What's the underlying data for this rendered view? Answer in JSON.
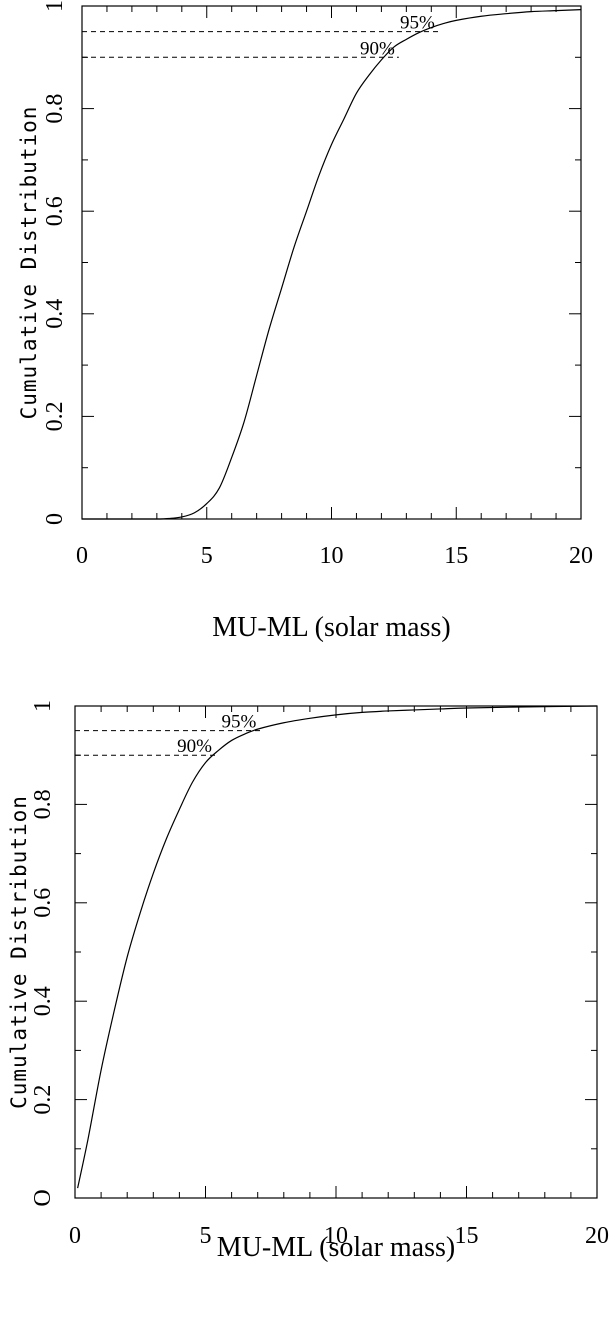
{
  "chart_data": [
    {
      "type": "line",
      "title": "",
      "xlabel": "MU-ML (solar mass)",
      "ylabel": "Cumulative    Distribution",
      "xlim": [
        0,
        20
      ],
      "ylim": [
        0,
        1
      ],
      "xticks": [
        0,
        5,
        10,
        15,
        20
      ],
      "yticks": [
        0,
        0.2,
        0.4,
        0.6,
        0.8,
        1
      ],
      "ytick_labels": [
        "0",
        "0.2",
        "0.4",
        "0.6",
        "0.8",
        "1"
      ],
      "series": [
        {
          "x": [
            0,
            2,
            3,
            3.5,
            4,
            4.5,
            5,
            5.5,
            6,
            6.5,
            7,
            7.5,
            8,
            8.5,
            9,
            9.5,
            10,
            10.5,
            11,
            11.5,
            12,
            12.5,
            13,
            13.5,
            14,
            14.5,
            15,
            16,
            17,
            18,
            19,
            20
          ],
          "values": [
            0,
            0,
            0,
            0.001,
            0.004,
            0.012,
            0.03,
            0.06,
            0.12,
            0.19,
            0.28,
            0.37,
            0.45,
            0.53,
            0.6,
            0.67,
            0.73,
            0.78,
            0.83,
            0.865,
            0.895,
            0.92,
            0.935,
            0.948,
            0.958,
            0.966,
            0.972,
            0.98,
            0.985,
            0.989,
            0.991,
            0.993
          ]
        }
      ],
      "reference_lines": [
        {
          "label": "90%",
          "y": 0.9,
          "x_end": 12.7
        },
        {
          "label": "95%",
          "y": 0.95,
          "x_end": 14.3
        }
      ]
    },
    {
      "type": "line",
      "title": "",
      "xlabel": "MU-ML (solar mass)",
      "ylabel": "Cumulative    Distribution",
      "xlim": [
        0,
        20
      ],
      "ylim": [
        0,
        1
      ],
      "xticks": [
        0,
        5,
        10,
        15,
        20
      ],
      "yticks": [
        0,
        0.2,
        0.4,
        0.6,
        0.8,
        1
      ],
      "ytick_labels": [
        "O",
        "0.2",
        "0.4",
        "0.6",
        "0.8",
        "1"
      ],
      "series": [
        {
          "x": [
            0.1,
            0.5,
            1,
            1.5,
            2,
            2.5,
            3,
            3.5,
            4,
            4.5,
            5,
            5.5,
            6,
            6.5,
            7,
            8,
            9,
            10,
            11,
            12,
            13,
            14,
            15,
            17,
            20
          ],
          "values": [
            0.02,
            0.12,
            0.26,
            0.38,
            0.49,
            0.58,
            0.66,
            0.73,
            0.79,
            0.845,
            0.885,
            0.91,
            0.93,
            0.943,
            0.953,
            0.966,
            0.975,
            0.982,
            0.987,
            0.99,
            0.992,
            0.994,
            0.996,
            0.998,
            1.0
          ]
        }
      ],
      "reference_lines": [
        {
          "label": "90%",
          "y": 0.9,
          "x_end": 5.4
        },
        {
          "label": "95%",
          "y": 0.95,
          "x_end": 7.1
        }
      ]
    }
  ]
}
